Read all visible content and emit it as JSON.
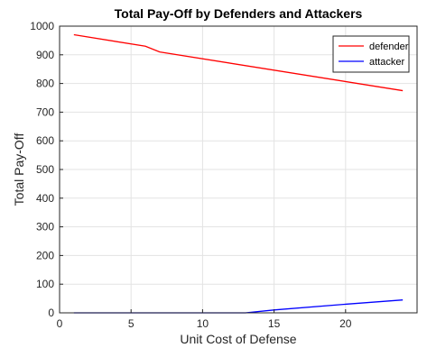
{
  "chart_data": {
    "type": "line",
    "title": "Total Pay-Off by Defenders and Attackers",
    "xlabel": "Unit Cost of Defense",
    "ylabel": "Total Pay-Off",
    "xlim": [
      0,
      25
    ],
    "ylim": [
      0,
      1000
    ],
    "xticks": [
      0,
      5,
      10,
      15,
      20
    ],
    "yticks": [
      0,
      100,
      200,
      300,
      400,
      500,
      600,
      700,
      800,
      900,
      1000
    ],
    "grid": true,
    "legend_position": "top-right",
    "series": [
      {
        "name": "defender",
        "color": "#ff0000",
        "x": [
          1,
          6,
          7,
          24
        ],
        "y": [
          970,
          930,
          910,
          775
        ]
      },
      {
        "name": "attacker",
        "color": "#0000ff",
        "x": [
          1,
          13,
          15,
          20,
          24
        ],
        "y": [
          0,
          0,
          10,
          30,
          45
        ]
      }
    ]
  }
}
